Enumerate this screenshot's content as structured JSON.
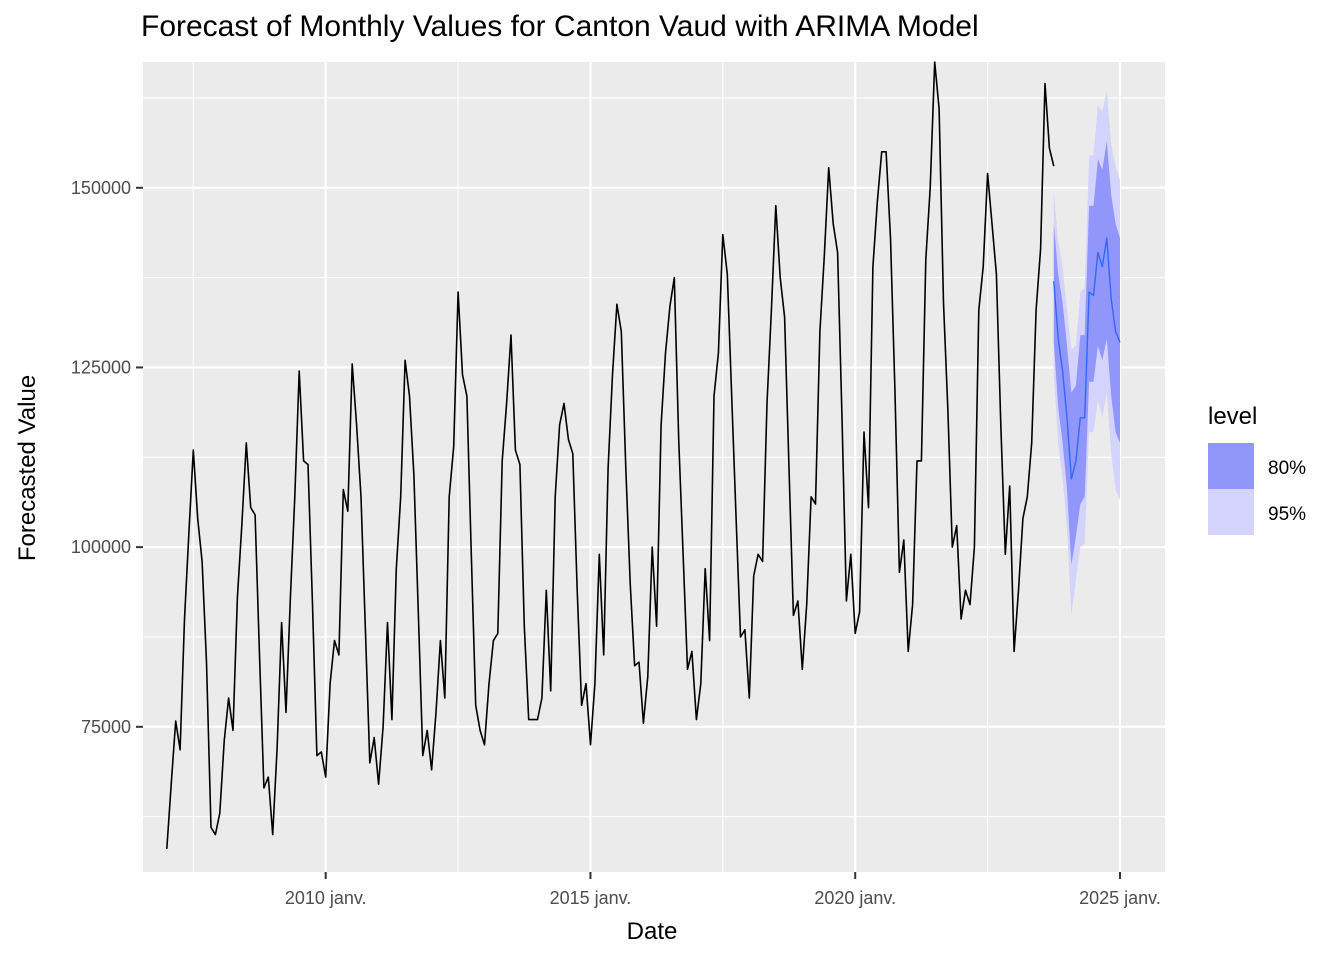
{
  "chart_data": {
    "type": "line",
    "title": "Forecast of Monthly Values for Canton Vaud with ARIMA Model",
    "xlabel": "Date",
    "ylabel": "Forecasted Value",
    "x_ticks": [
      {
        "t": 2010.0,
        "label": "2010 janv."
      },
      {
        "t": 2015.0,
        "label": "2015 janv."
      },
      {
        "t": 2020.0,
        "label": "2020 janv."
      },
      {
        "t": 2025.0,
        "label": "2025 janv."
      }
    ],
    "y_ticks": [
      75000,
      100000,
      125000,
      150000
    ],
    "xlim": [
      2006.55,
      2025.85
    ],
    "ylim": [
      54800,
      167500
    ],
    "grid": true,
    "legend": {
      "title": "level",
      "position": "right",
      "entries": [
        {
          "label": "80%",
          "color": "#9196fb"
        },
        {
          "label": "95%",
          "color": "#d3d3fd"
        }
      ]
    },
    "series": [
      {
        "role": "observed",
        "color": "#000000",
        "start": "2007-01",
        "values": [
          58000,
          67000,
          75800,
          71800,
          90000,
          102000,
          113500,
          104000,
          98000,
          84000,
          61000,
          60000,
          63000,
          73000,
          79000,
          74500,
          93000,
          103000,
          114500,
          105500,
          104500,
          85000,
          66500,
          68000,
          60000,
          72000,
          89500,
          77000,
          93000,
          107000,
          124500,
          112000,
          111500,
          92000,
          71000,
          71500,
          68000,
          81000,
          87000,
          85000,
          108000,
          105000,
          125500,
          117000,
          107000,
          88500,
          70000,
          73500,
          67000,
          75000,
          89500,
          76000,
          97000,
          107000,
          126000,
          121000,
          110000,
          90500,
          71000,
          74500,
          69000,
          77000,
          87000,
          79000,
          107000,
          114000,
          135500,
          124000,
          121000,
          99000,
          78000,
          74500,
          72500,
          81000,
          87000,
          88000,
          112000,
          120000,
          129500,
          113500,
          111500,
          89000,
          76000,
          76000,
          76000,
          79000,
          94000,
          80000,
          107000,
          117000,
          120000,
          115000,
          113000,
          94000,
          78000,
          81000,
          72500,
          81000,
          99000,
          85000,
          111000,
          124000,
          133800,
          130000,
          111000,
          95000,
          83500,
          84000,
          75500,
          82000,
          100000,
          89000,
          117000,
          127000,
          133500,
          137500,
          115000,
          99000,
          83000,
          85500,
          76000,
          81000,
          97000,
          87000,
          121000,
          127000,
          143500,
          138000,
          121000,
          104000,
          87500,
          88500,
          79000,
          96000,
          99000,
          98000,
          120000,
          133000,
          147500,
          137500,
          132000,
          111000,
          90500,
          92500,
          83000,
          92000,
          107000,
          106000,
          130000,
          140500,
          152800,
          145000,
          141000,
          118000,
          92500,
          99000,
          88000,
          91000,
          116000,
          105500,
          139000,
          148000,
          155000,
          155000,
          143000,
          122000,
          96500,
          101000,
          85500,
          92000,
          112000,
          112000,
          140000,
          150000,
          167500,
          161000,
          134000,
          119000,
          100000,
          103000,
          90000,
          94000,
          92000,
          100000,
          133000,
          139000,
          152000,
          145000,
          138000,
          117000,
          99000,
          108500,
          85500,
          94000,
          104000,
          107000,
          114500,
          133000,
          141500,
          164500,
          155500,
          153000
        ]
      },
      {
        "role": "forecast",
        "color": "#3366ff",
        "start": "2023-10",
        "values": [
          137000,
          129000,
          124500,
          118000,
          109500,
          112000,
          118000,
          118000,
          135500,
          135000,
          141000,
          139000,
          143000,
          134500,
          130000,
          128500
        ],
        "lo80": [
          128500,
          119500,
          114500,
          108000,
          97500,
          101500,
          106000,
          107000,
          123000,
          123000,
          128000,
          126000,
          129000,
          121000,
          116000,
          114500
        ],
        "hi80": [
          145000,
          138000,
          134000,
          128000,
          121500,
          122500,
          129500,
          129500,
          147500,
          147500,
          154000,
          152500,
          156500,
          149000,
          145000,
          143000
        ],
        "lo95": [
          124000,
          114500,
          109500,
          102500,
          90500,
          95500,
          100000,
          100500,
          116000,
          116000,
          120500,
          118000,
          121500,
          113000,
          108000,
          106500
        ],
        "hi95": [
          149500,
          142500,
          139000,
          133000,
          127500,
          128000,
          135500,
          136000,
          154500,
          154500,
          161500,
          160500,
          163500,
          156000,
          153000,
          151000
        ]
      }
    ]
  }
}
